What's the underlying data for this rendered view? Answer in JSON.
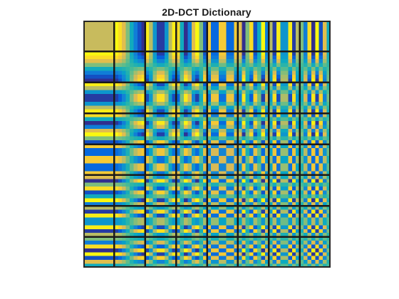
{
  "figure": {
    "title": "2D-DCT Dictionary"
  },
  "dictionary": {
    "transform": "2D-DCT",
    "atoms_per_row": 8,
    "atom_rows": 8,
    "atom_size": 8,
    "colormap": "parula",
    "colormap_stops": [
      "#352a87",
      "#0363e1",
      "#1485d4",
      "#06a7c6",
      "#38b99e",
      "#92bf73",
      "#d9ba56",
      "#fcce2e",
      "#f9fb0e"
    ],
    "separator_color": "#1a1a1a",
    "frame_color": "#262626"
  }
}
